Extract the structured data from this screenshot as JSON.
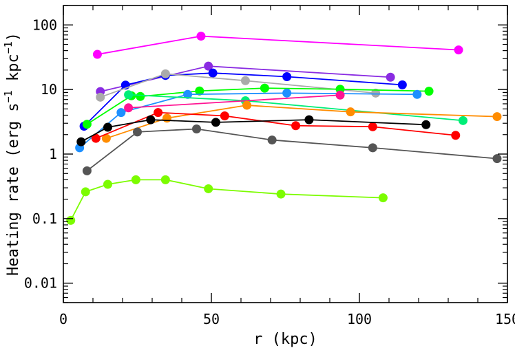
{
  "chart_data": {
    "type": "scatter",
    "title": "",
    "xlabel": "r (kpc)",
    "ylabel_main": "Heating rate (erg s",
    "ylabel_sup1": "−1",
    "ylabel_mid": " kpc",
    "ylabel_sup2": "−1",
    "ylabel_end": ")",
    "xlim": [
      0,
      150
    ],
    "ylim": [
      0.005,
      200
    ],
    "yscale": "log",
    "grid": false,
    "legend": "none",
    "xticks": [
      0,
      50,
      100,
      150
    ],
    "xtick_labels": [
      "0",
      "50",
      "100",
      "150"
    ],
    "yticks": [
      0.01,
      0.1,
      1,
      10,
      100
    ],
    "ytick_labels": [
      "0.01",
      "0.1",
      "1",
      "10",
      "100"
    ],
    "series": [
      {
        "color": "#ff00ff",
        "x": [
          11.5,
          46.5,
          133.5
        ],
        "y": [
          35,
          67,
          41
        ]
      },
      {
        "color": "#8a2be2",
        "x": [
          12.5,
          49,
          110.5
        ],
        "y": [
          9.3,
          23,
          15.5
        ]
      },
      {
        "color": "#0000ff",
        "x": [
          7,
          21,
          34.5,
          50.5,
          75.5,
          114.5
        ],
        "y": [
          2.7,
          11.7,
          16.5,
          18,
          15.8,
          11.8
        ]
      },
      {
        "color": "#aaaaaa",
        "x": [
          12.5,
          34.5,
          61.5,
          105.5
        ],
        "y": [
          7.6,
          17.5,
          13.7,
          8.8
        ]
      },
      {
        "color": "#00ff00",
        "x": [
          8,
          23,
          26,
          46,
          68,
          93.5,
          123.5
        ],
        "y": [
          2.9,
          8,
          7.8,
          9.5,
          10.5,
          10.1,
          9.4
        ]
      },
      {
        "color": "#1e90ff",
        "x": [
          5.5,
          19.5,
          42,
          75.5,
          119.5
        ],
        "y": [
          1.25,
          4.4,
          8.4,
          8.8,
          8.4
        ]
      },
      {
        "color": "#00ee77",
        "x": [
          22,
          61.5,
          135
        ],
        "y": [
          8.3,
          6.7,
          3.3
        ]
      },
      {
        "color": "#ff1493",
        "x": [
          22,
          93.5
        ],
        "y": [
          5.2,
          8.2
        ]
      },
      {
        "color": "#ff8c00",
        "x": [
          14.5,
          35,
          62,
          97,
          146.5
        ],
        "y": [
          1.75,
          3.6,
          5.7,
          4.5,
          3.8
        ]
      },
      {
        "color": "#ff0000",
        "x": [
          11,
          32,
          54.5,
          78.5,
          104.5,
          132.5
        ],
        "y": [
          1.75,
          4.4,
          3.9,
          2.75,
          2.65,
          1.95
        ]
      },
      {
        "color": "#000000",
        "x": [
          6,
          15,
          29.5,
          51.5,
          83,
          122.5
        ],
        "y": [
          1.55,
          2.6,
          3.4,
          3.1,
          3.4,
          2.85
        ]
      },
      {
        "color": "#555555",
        "x": [
          8,
          25,
          45,
          70.5,
          104.5,
          146.5
        ],
        "y": [
          0.55,
          2.2,
          2.45,
          1.65,
          1.25,
          0.85
        ]
      },
      {
        "color": "#7cfc00",
        "x": [
          2.5,
          7.5,
          15,
          24.5,
          34.5,
          49,
          73.5,
          108
        ],
        "y": [
          0.094,
          0.26,
          0.34,
          0.4,
          0.4,
          0.29,
          0.24,
          0.21
        ]
      }
    ]
  }
}
